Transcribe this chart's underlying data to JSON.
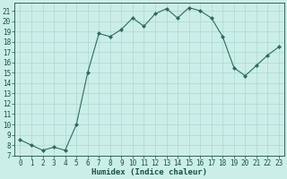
{
  "x": [
    0,
    1,
    2,
    3,
    4,
    5,
    6,
    7,
    8,
    9,
    10,
    11,
    12,
    13,
    14,
    15,
    16,
    17,
    18,
    19,
    20,
    21,
    22,
    23
  ],
  "y": [
    8.5,
    8.0,
    7.5,
    7.8,
    7.5,
    10.0,
    15.0,
    18.8,
    18.5,
    19.2,
    20.3,
    19.5,
    20.7,
    21.2,
    20.3,
    21.3,
    21.0,
    20.3,
    18.5,
    15.5,
    14.7,
    15.7,
    16.7,
    17.5
  ],
  "line_color": "#2e6b5e",
  "marker": "D",
  "marker_size": 2,
  "bg_color": "#cceee8",
  "grid_color": "#aad8d0",
  "xlabel": "Humidex (Indice chaleur)",
  "xlim": [
    -0.5,
    23.5
  ],
  "ylim": [
    7,
    21.8
  ],
  "yticks": [
    7,
    8,
    9,
    10,
    11,
    12,
    13,
    14,
    15,
    16,
    17,
    18,
    19,
    20,
    21
  ],
  "xticks": [
    0,
    1,
    2,
    3,
    4,
    5,
    6,
    7,
    8,
    9,
    10,
    11,
    12,
    13,
    14,
    15,
    16,
    17,
    18,
    19,
    20,
    21,
    22,
    23
  ],
  "font_color": "#1a5045",
  "font_size": 5.5,
  "xlabel_size": 6.5
}
